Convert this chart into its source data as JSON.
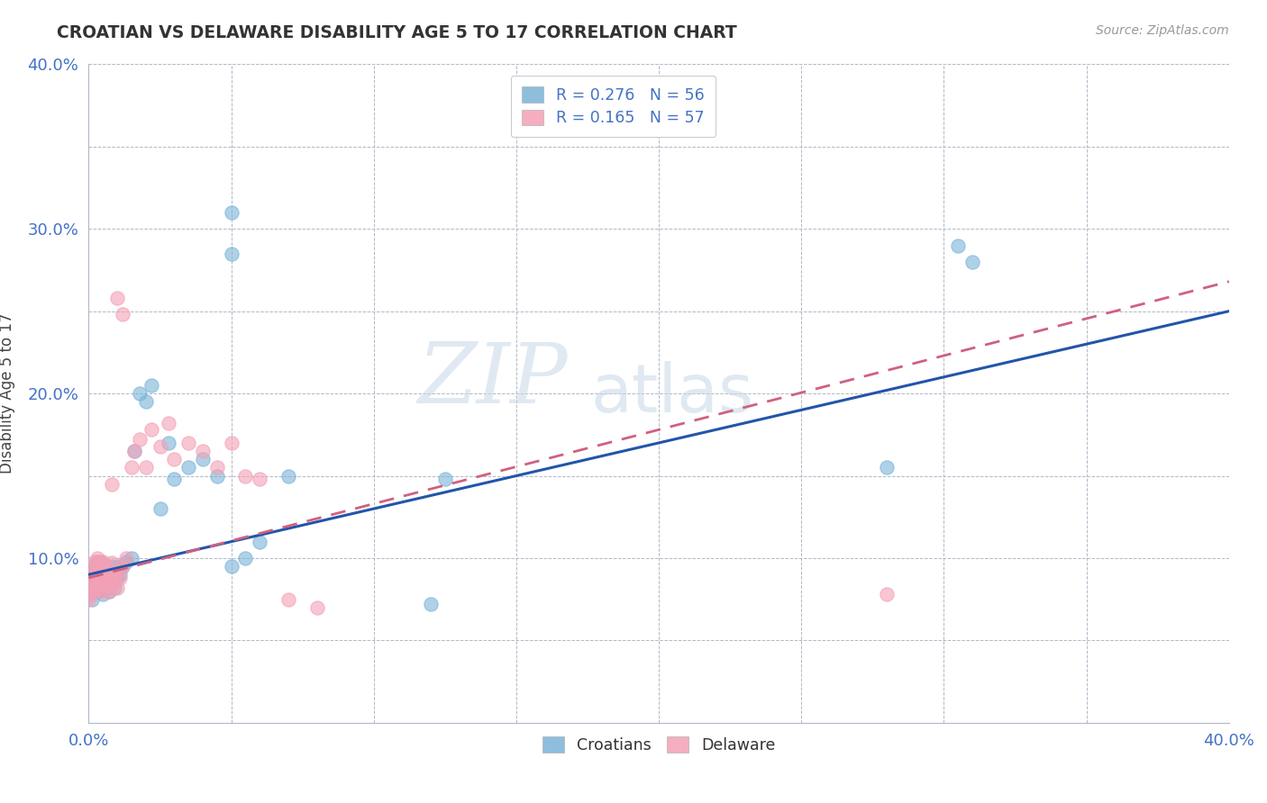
{
  "title": "CROATIAN VS DELAWARE DISABILITY AGE 5 TO 17 CORRELATION CHART",
  "source": "Source: ZipAtlas.com",
  "xlabel": "",
  "ylabel": "Disability Age 5 to 17",
  "xlim": [
    0.0,
    0.4
  ],
  "ylim": [
    0.0,
    0.4
  ],
  "xticks": [
    0.0,
    0.05,
    0.1,
    0.15,
    0.2,
    0.25,
    0.3,
    0.35,
    0.4
  ],
  "yticks": [
    0.0,
    0.05,
    0.1,
    0.15,
    0.2,
    0.25,
    0.3,
    0.35,
    0.4
  ],
  "croatian_color": "#7ab3d8",
  "delaware_color": "#f4a0b5",
  "croatian_line_color": "#2255aa",
  "delaware_line_color": "#d06080",
  "R_croatian": 0.276,
  "N_croatian": 56,
  "R_delaware": 0.165,
  "N_delaware": 57,
  "legend_labels": [
    "Croatians",
    "Delaware"
  ],
  "watermark_zip": "ZIP",
  "watermark_atlas": "atlas",
  "croatian_x": [
    0.001,
    0.001,
    0.001,
    0.002,
    0.002,
    0.002,
    0.002,
    0.003,
    0.003,
    0.003,
    0.003,
    0.004,
    0.004,
    0.004,
    0.004,
    0.005,
    0.005,
    0.005,
    0.005,
    0.006,
    0.006,
    0.006,
    0.007,
    0.007,
    0.007,
    0.008,
    0.008,
    0.009,
    0.009,
    0.01,
    0.01,
    0.011,
    0.012,
    0.013,
    0.015,
    0.016,
    0.018,
    0.02,
    0.022,
    0.025,
    0.028,
    0.03,
    0.035,
    0.04,
    0.045,
    0.05,
    0.055,
    0.06,
    0.07,
    0.05,
    0.05,
    0.12,
    0.125,
    0.28,
    0.305,
    0.31
  ],
  "croatian_y": [
    0.075,
    0.08,
    0.09,
    0.085,
    0.088,
    0.092,
    0.095,
    0.08,
    0.086,
    0.092,
    0.098,
    0.082,
    0.088,
    0.092,
    0.098,
    0.078,
    0.085,
    0.09,
    0.096,
    0.082,
    0.088,
    0.095,
    0.08,
    0.086,
    0.092,
    0.085,
    0.095,
    0.082,
    0.092,
    0.088,
    0.095,
    0.09,
    0.095,
    0.098,
    0.1,
    0.165,
    0.2,
    0.195,
    0.205,
    0.13,
    0.17,
    0.148,
    0.155,
    0.16,
    0.15,
    0.095,
    0.1,
    0.11,
    0.15,
    0.285,
    0.31,
    0.072,
    0.148,
    0.155,
    0.29,
    0.28
  ],
  "delaware_x": [
    0.0,
    0.0,
    0.001,
    0.001,
    0.001,
    0.001,
    0.002,
    0.002,
    0.002,
    0.002,
    0.003,
    0.003,
    0.003,
    0.003,
    0.004,
    0.004,
    0.004,
    0.005,
    0.005,
    0.005,
    0.005,
    0.006,
    0.006,
    0.006,
    0.007,
    0.007,
    0.007,
    0.008,
    0.008,
    0.008,
    0.009,
    0.009,
    0.01,
    0.01,
    0.011,
    0.012,
    0.013,
    0.015,
    0.016,
    0.018,
    0.02,
    0.022,
    0.025,
    0.028,
    0.03,
    0.035,
    0.04,
    0.045,
    0.05,
    0.055,
    0.06,
    0.07,
    0.08,
    0.01,
    0.012,
    0.008,
    0.28
  ],
  "delaware_y": [
    0.075,
    0.082,
    0.078,
    0.085,
    0.09,
    0.095,
    0.08,
    0.086,
    0.092,
    0.098,
    0.082,
    0.088,
    0.093,
    0.1,
    0.085,
    0.092,
    0.098,
    0.08,
    0.086,
    0.092,
    0.098,
    0.083,
    0.089,
    0.095,
    0.08,
    0.087,
    0.093,
    0.083,
    0.09,
    0.097,
    0.085,
    0.092,
    0.082,
    0.092,
    0.088,
    0.095,
    0.1,
    0.155,
    0.165,
    0.172,
    0.155,
    0.178,
    0.168,
    0.182,
    0.16,
    0.17,
    0.165,
    0.155,
    0.17,
    0.15,
    0.148,
    0.075,
    0.07,
    0.258,
    0.248,
    0.145,
    0.078
  ]
}
